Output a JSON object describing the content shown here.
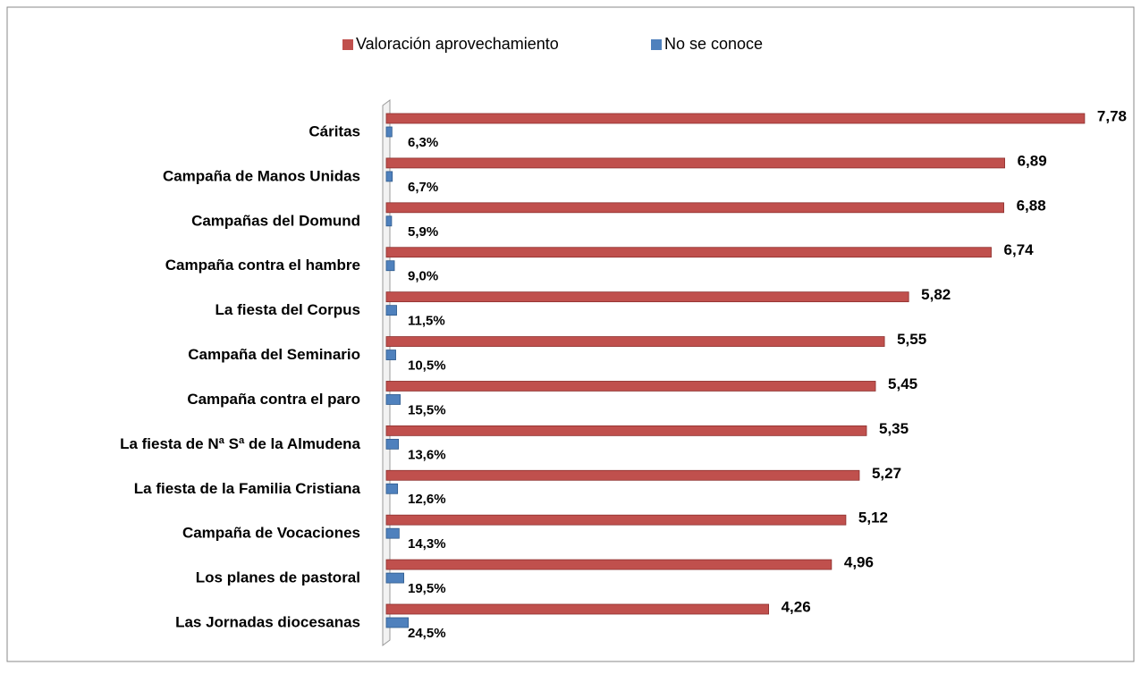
{
  "chart_data": {
    "type": "bar",
    "orientation": "horizontal",
    "categories": [
      "Cáritas",
      "Campaña de Manos Unidas",
      "Campañas del Domund",
      "Campaña contra el hambre",
      "La fiesta del Corpus",
      "Campaña del Seminario",
      "Campaña contra el paro",
      "La fiesta de Nª Sª de la Almudena",
      "La fiesta de la Familia Cristiana",
      "Campaña de Vocaciones",
      "Los planes de pastoral",
      "Las Jornadas diocesanas"
    ],
    "series": [
      {
        "name": "Valoración aprovechamiento",
        "color": "#c0504d",
        "values": [
          7.78,
          6.89,
          6.88,
          6.74,
          5.82,
          5.55,
          5.45,
          5.35,
          5.27,
          5.12,
          4.96,
          4.26
        ],
        "value_labels": [
          "7,78",
          "6,89",
          "6,88",
          "6,74",
          "5,82",
          "5,55",
          "5,45",
          "5,35",
          "5,27",
          "5,12",
          "4,96",
          "4,26"
        ]
      },
      {
        "name": "No se conoce",
        "color": "#4f81bd",
        "axis": "y2",
        "values": [
          6.3,
          6.7,
          5.9,
          9.0,
          11.5,
          10.5,
          15.5,
          13.6,
          12.6,
          14.3,
          19.5,
          24.5
        ],
        "value_labels": [
          "6,3%",
          "6,7%",
          "5,9%",
          "9,0%",
          "11,5%",
          "10,5%",
          "15,5%",
          "13,6%",
          "12,6%",
          "14,3%",
          "19,5%",
          "24,5%"
        ]
      }
    ],
    "ylim": [
      0,
      8
    ],
    "y2lim": [
      0,
      800
    ],
    "legend": "top"
  }
}
